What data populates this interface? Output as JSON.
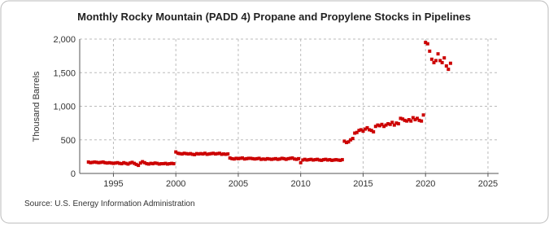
{
  "chart_data": {
    "type": "scatter",
    "title": "Monthly Rocky Mountain (PADD 4) Propane and Propylene Stocks in Pipelines",
    "y_label": "Thousand Barrels",
    "source": "Source: U.S. Energy Information Administration",
    "color": "#cc0000",
    "grid": true,
    "xlim": [
      1992.3,
      2025.85
    ],
    "xticks": [
      1995,
      2000,
      2005,
      2010,
      2015,
      2020,
      2025
    ],
    "ylim": [
      0,
      2000
    ],
    "yticks": [
      0,
      500,
      {
        "value": 1000,
        "label": "1,000"
      },
      {
        "value": 1500,
        "label": "1,500"
      },
      {
        "value": 2000,
        "label": "2,000"
      }
    ],
    "x": [
      1993,
      1993.17,
      1993.33,
      1993.5,
      1993.67,
      1993.83,
      1994,
      1994.17,
      1994.33,
      1994.5,
      1994.67,
      1994.83,
      1995,
      1995.17,
      1995.33,
      1995.5,
      1995.67,
      1995.83,
      1996,
      1996.17,
      1996.33,
      1996.5,
      1996.67,
      1996.83,
      1997,
      1997.17,
      1997.33,
      1997.5,
      1997.67,
      1997.83,
      1998,
      1998.17,
      1998.33,
      1998.5,
      1998.67,
      1998.83,
      1999,
      1999.17,
      1999.33,
      1999.5,
      1999.67,
      1999.83,
      2000,
      2000.17,
      2000.33,
      2000.5,
      2000.67,
      2000.83,
      2001,
      2001.17,
      2001.33,
      2001.5,
      2001.67,
      2001.83,
      2002,
      2002.17,
      2002.33,
      2002.5,
      2002.67,
      2002.83,
      2003,
      2003.17,
      2003.33,
      2003.5,
      2003.67,
      2003.83,
      2004,
      2004.17,
      2004.33,
      2004.5,
      2004.67,
      2004.83,
      2005,
      2005.17,
      2005.33,
      2005.5,
      2005.67,
      2005.83,
      2006,
      2006.17,
      2006.33,
      2006.5,
      2006.67,
      2006.83,
      2007,
      2007.17,
      2007.33,
      2007.5,
      2007.67,
      2007.83,
      2008,
      2008.17,
      2008.33,
      2008.5,
      2008.67,
      2008.83,
      2009,
      2009.17,
      2009.33,
      2009.5,
      2009.67,
      2009.83,
      2010,
      2010.17,
      2010.33,
      2010.5,
      2010.67,
      2010.83,
      2011,
      2011.17,
      2011.33,
      2011.5,
      2011.67,
      2011.83,
      2012,
      2012.17,
      2012.33,
      2012.5,
      2012.67,
      2012.83,
      2013,
      2013.17,
      2013.33,
      2013.5,
      2013.67,
      2013.83,
      2014,
      2014.17,
      2014.33,
      2014.5,
      2014.67,
      2014.83,
      2015,
      2015.17,
      2015.33,
      2015.5,
      2015.67,
      2015.83,
      2016,
      2016.17,
      2016.33,
      2016.5,
      2016.67,
      2016.83,
      2017,
      2017.17,
      2017.33,
      2017.5,
      2017.67,
      2017.83,
      2018,
      2018.17,
      2018.33,
      2018.5,
      2018.67,
      2018.83,
      2019,
      2019.17,
      2019.33,
      2019.5,
      2019.67,
      2019.83,
      2020,
      2020.17,
      2020.33,
      2020.5,
      2020.67,
      2020.83,
      2021,
      2021.17,
      2021.33,
      2021.5,
      2021.67,
      2021.83,
      2022
    ],
    "values": [
      170,
      160,
      165,
      170,
      165,
      160,
      165,
      170,
      160,
      155,
      160,
      155,
      150,
      155,
      160,
      150,
      145,
      160,
      150,
      140,
      155,
      165,
      150,
      135,
      120,
      155,
      175,
      160,
      145,
      140,
      150,
      145,
      155,
      150,
      140,
      145,
      145,
      150,
      140,
      145,
      150,
      145,
      320,
      300,
      295,
      290,
      300,
      295,
      290,
      295,
      285,
      280,
      295,
      290,
      295,
      290,
      300,
      285,
      290,
      295,
      300,
      290,
      295,
      300,
      285,
      290,
      285,
      290,
      230,
      220,
      215,
      225,
      220,
      225,
      230,
      215,
      220,
      225,
      225,
      220,
      215,
      220,
      225,
      210,
      215,
      210,
      220,
      215,
      210,
      215,
      220,
      210,
      215,
      225,
      220,
      210,
      220,
      225,
      230,
      215,
      210,
      220,
      160,
      200,
      210,
      200,
      205,
      210,
      200,
      205,
      210,
      200,
      195,
      205,
      210,
      200,
      205,
      195,
      200,
      205,
      200,
      195,
      205,
      480,
      460,
      470,
      500,
      520,
      600,
      610,
      640,
      650,
      630,
      660,
      680,
      650,
      640,
      620,
      700,
      720,
      710,
      730,
      700,
      720,
      740,
      730,
      760,
      720,
      750,
      740,
      820,
      810,
      790,
      780,
      800,
      780,
      830,
      800,
      820,
      790,
      780,
      870,
      1950,
      1930,
      1820,
      1700,
      1650,
      1680,
      1780,
      1680,
      1650,
      1720,
      1600,
      1550,
      1640
    ]
  }
}
